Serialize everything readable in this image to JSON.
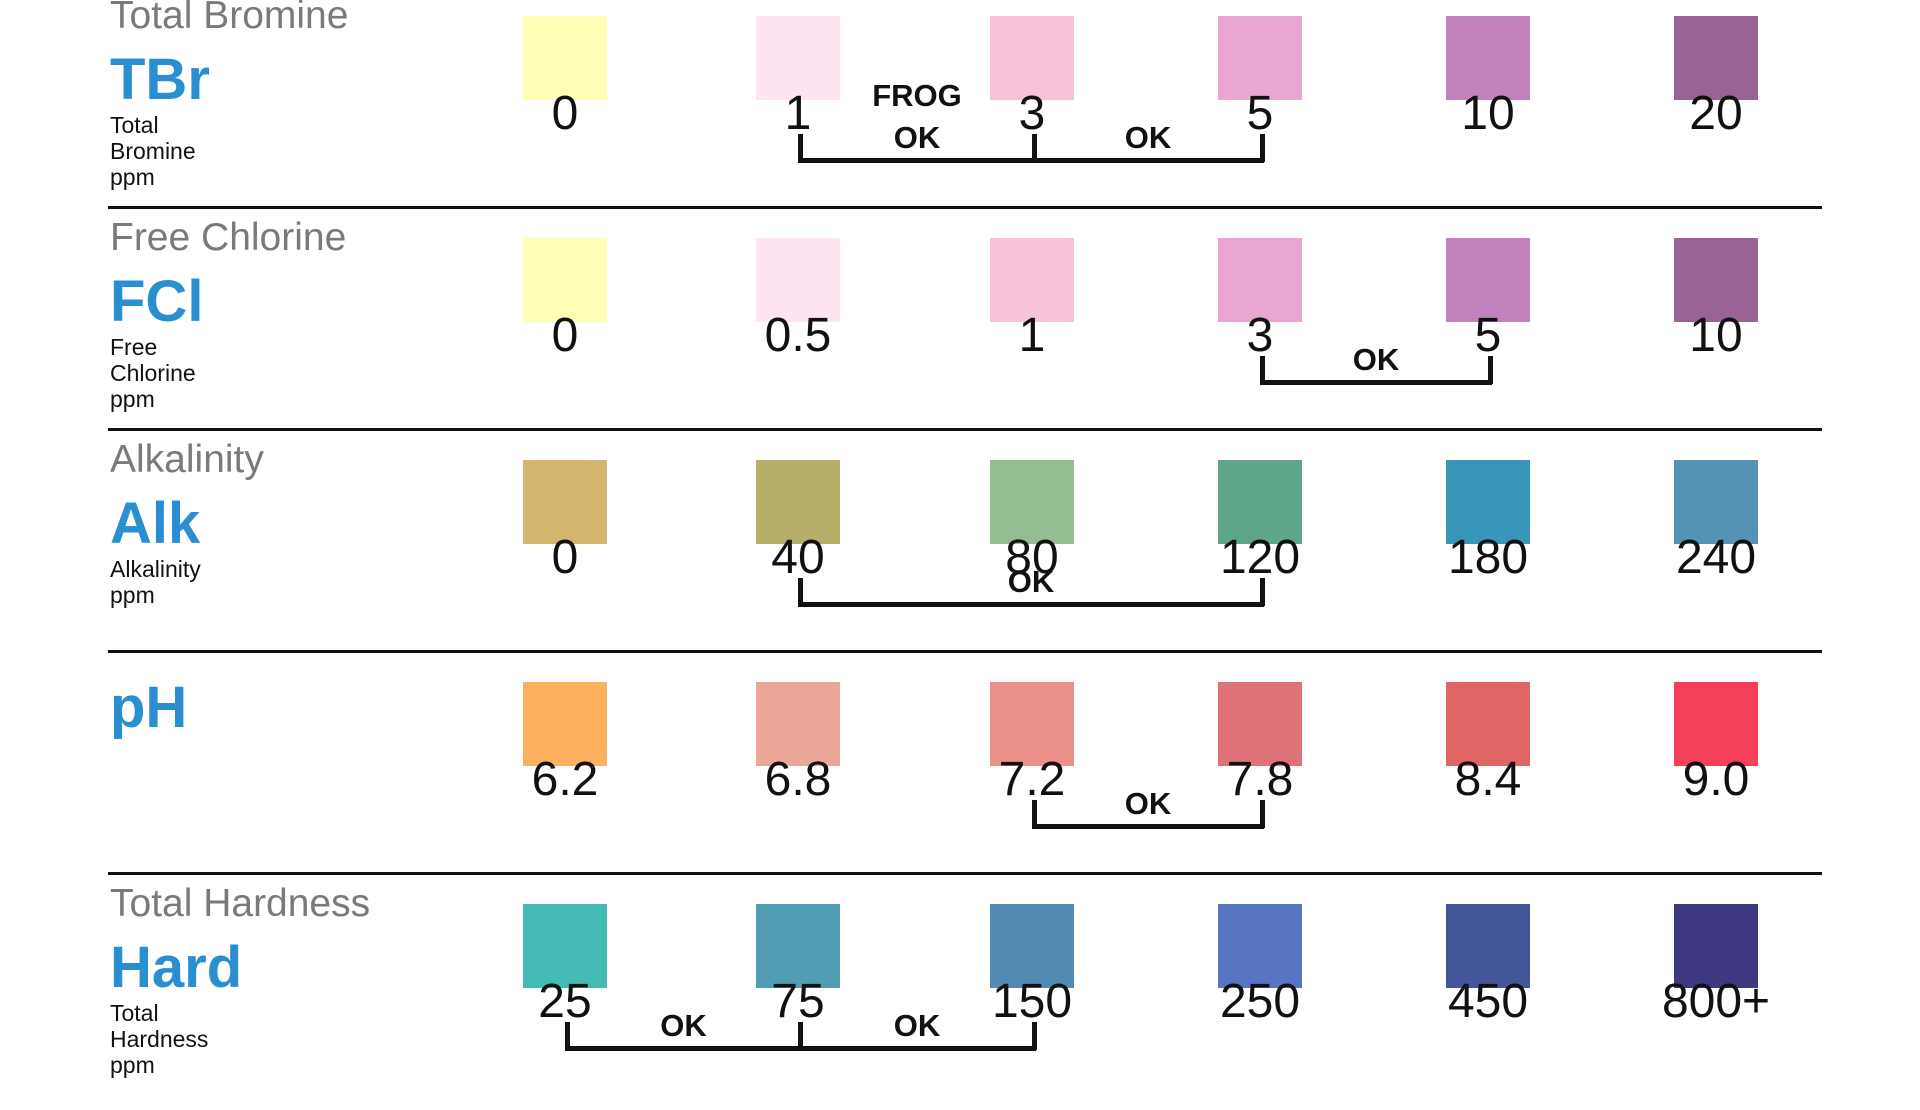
{
  "rows": [
    {
      "title": "Total Bromine",
      "abbr": "TBr",
      "desc": [
        "Total",
        "Bromine",
        "ppm"
      ],
      "swatches": [
        {
          "value": "0",
          "color": "#ffffb8"
        },
        {
          "value": "1",
          "color": "#fde4f0"
        },
        {
          "value": "3",
          "color": "#f6c3da"
        },
        {
          "value": "5",
          "color": "#e9a6d3"
        },
        {
          "value": "10",
          "color": "#c181bc"
        },
        {
          "value": "20",
          "color": "#996396"
        }
      ],
      "frog_label": "FROG",
      "ok_ranges": [
        {
          "from": 1,
          "to": 2,
          "label": "OK"
        },
        {
          "from": 2,
          "to": 3,
          "label": "OK"
        }
      ]
    },
    {
      "title": "Free Chlorine",
      "abbr": "FCl",
      "desc": [
        "Free",
        "Chlorine",
        "ppm"
      ],
      "swatches": [
        {
          "value": "0",
          "color": "#ffffb8"
        },
        {
          "value": "0.5",
          "color": "#fde4f0"
        },
        {
          "value": "1",
          "color": "#f6c3da"
        },
        {
          "value": "3",
          "color": "#e9a6d3"
        },
        {
          "value": "5",
          "color": "#c181bc"
        },
        {
          "value": "10",
          "color": "#996396"
        }
      ],
      "ok_ranges": [
        {
          "from": 3,
          "to": 4,
          "label": "OK"
        }
      ]
    },
    {
      "title": "Alkalinity",
      "abbr": "Alk",
      "desc": [
        "Alkalinity",
        "ppm"
      ],
      "swatches": [
        {
          "value": "0",
          "color": "#d5b66e"
        },
        {
          "value": "40",
          "color": "#b7ae6a"
        },
        {
          "value": "80",
          "color": "#94bd92"
        },
        {
          "value": "120",
          "color": "#5fa58a"
        },
        {
          "value": "180",
          "color": "#3996bb"
        },
        {
          "value": "240",
          "color": "#5593b6"
        }
      ],
      "ok_ranges": [
        {
          "from": 1,
          "to": 3,
          "label": "OK"
        }
      ]
    },
    {
      "title": "",
      "abbr": "pH",
      "desc": [],
      "swatches": [
        {
          "value": "6.2",
          "color": "#fdb15f"
        },
        {
          "value": "6.8",
          "color": "#eba798"
        },
        {
          "value": "7.2",
          "color": "#ec908a"
        },
        {
          "value": "7.8",
          "color": "#de7279"
        },
        {
          "value": "8.4",
          "color": "#e06565"
        },
        {
          "value": "9.0",
          "color": "#f5405a"
        }
      ],
      "ok_ranges": [
        {
          "from": 2,
          "to": 3,
          "label": "OK"
        }
      ]
    },
    {
      "title": "Total Hardness",
      "abbr": "Hard",
      "desc": [
        "Total",
        "Hardness",
        "ppm"
      ],
      "swatches": [
        {
          "value": "25",
          "color": "#44bbb5"
        },
        {
          "value": "75",
          "color": "#519eb4"
        },
        {
          "value": "150",
          "color": "#518ab3"
        },
        {
          "value": "250",
          "color": "#5775c0"
        },
        {
          "value": "450",
          "color": "#44569a"
        },
        {
          "value": "800+",
          "color": "#3e3880"
        }
      ],
      "ok_ranges": [
        {
          "from": 0,
          "to": 1,
          "label": "OK"
        },
        {
          "from": 1,
          "to": 2,
          "label": "OK"
        }
      ]
    }
  ]
}
